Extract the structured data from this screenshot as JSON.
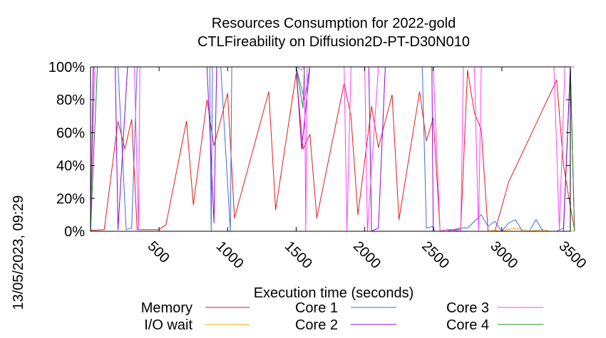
{
  "chart_data": {
    "type": "line",
    "title": "Resources Consumption for 2022-gold",
    "subtitle": "CTLFireability on Diffusion2D-PT-D30N010",
    "xlabel": "Execution time (seconds)",
    "ylabel": "",
    "side_label": "13/05/2023, 09:29",
    "xlim": [
      0,
      3500
    ],
    "ylim": [
      0,
      100
    ],
    "x_ticks": [
      500,
      1000,
      1500,
      2000,
      2500,
      3000,
      3500
    ],
    "y_ticks": [
      0,
      20,
      40,
      60,
      80,
      100
    ],
    "y_tick_labels": [
      "0%",
      "20%",
      "40%",
      "60%",
      "80%",
      "100%"
    ],
    "grid": false,
    "legend_position": "bottom",
    "series": [
      {
        "name": "Memory",
        "color": "#e41a1c",
        "points": [
          [
            0,
            0.5
          ],
          [
            100,
            1
          ],
          [
            200,
            67
          ],
          [
            250,
            50
          ],
          [
            300,
            68
          ],
          [
            340,
            1
          ],
          [
            500,
            1
          ],
          [
            550,
            4
          ],
          [
            700,
            67
          ],
          [
            750,
            16
          ],
          [
            850,
            80
          ],
          [
            900,
            52
          ],
          [
            1000,
            84
          ],
          [
            1050,
            8
          ],
          [
            1300,
            85
          ],
          [
            1350,
            13
          ],
          [
            1500,
            96
          ],
          [
            1550,
            50
          ],
          [
            1600,
            59
          ],
          [
            1650,
            8
          ],
          [
            1850,
            90
          ],
          [
            1900,
            70
          ],
          [
            1950,
            10
          ],
          [
            2050,
            76
          ],
          [
            2100,
            51
          ],
          [
            2200,
            83
          ],
          [
            2250,
            7
          ],
          [
            2400,
            85
          ],
          [
            2450,
            55
          ],
          [
            2500,
            69
          ],
          [
            2550,
            0
          ],
          [
            2600,
            1
          ],
          [
            2700,
            1
          ],
          [
            2750,
            98
          ],
          [
            2800,
            72
          ],
          [
            2850,
            62
          ],
          [
            2900,
            0
          ],
          [
            2950,
            0
          ],
          [
            3050,
            30
          ],
          [
            3400,
            92
          ],
          [
            3450,
            40
          ],
          [
            3500,
            15
          ],
          [
            3530,
            1
          ]
        ]
      },
      {
        "name": "I/O wait",
        "color": "#ffa500",
        "points": [
          [
            0,
            0
          ],
          [
            2900,
            0
          ],
          [
            2950,
            0.5
          ],
          [
            3000,
            0
          ],
          [
            3100,
            2
          ],
          [
            3150,
            1
          ],
          [
            3200,
            0
          ],
          [
            3300,
            1
          ],
          [
            3350,
            0
          ],
          [
            3530,
            0
          ]
        ]
      },
      {
        "name": "Core 1",
        "color": "#4169e1",
        "points": [
          [
            0,
            0
          ],
          [
            20,
            100
          ],
          [
            100,
            100
          ],
          [
            200,
            100
          ],
          [
            260,
            1
          ],
          [
            300,
            2
          ],
          [
            340,
            100
          ],
          [
            800,
            100
          ],
          [
            870,
            100
          ],
          [
            880,
            0
          ],
          [
            890,
            100
          ],
          [
            950,
            100
          ],
          [
            1020,
            0
          ],
          [
            1030,
            100
          ],
          [
            1500,
            100
          ],
          [
            1560,
            80
          ],
          [
            1600,
            100
          ],
          [
            2420,
            100
          ],
          [
            2450,
            2
          ],
          [
            2500,
            3
          ],
          [
            2510,
            0
          ],
          [
            2550,
            0
          ],
          [
            2600,
            0
          ],
          [
            2700,
            2
          ],
          [
            2750,
            2
          ],
          [
            2850,
            10
          ],
          [
            2900,
            3
          ],
          [
            2950,
            6
          ],
          [
            3000,
            0
          ],
          [
            3050,
            5
          ],
          [
            3100,
            7
          ],
          [
            3150,
            0
          ],
          [
            3200,
            0
          ],
          [
            3250,
            7
          ],
          [
            3300,
            0
          ],
          [
            3400,
            0
          ],
          [
            3450,
            2
          ],
          [
            3500,
            100
          ],
          [
            3530,
            100
          ]
        ]
      },
      {
        "name": "Core 2",
        "color": "#9400d3",
        "points": [
          [
            0,
            0
          ],
          [
            20,
            100
          ],
          [
            130,
            100
          ],
          [
            180,
            100
          ],
          [
            200,
            1
          ],
          [
            270,
            100
          ],
          [
            850,
            100
          ],
          [
            900,
            5
          ],
          [
            920,
            100
          ],
          [
            1500,
            100
          ],
          [
            1540,
            50
          ],
          [
            1600,
            100
          ],
          [
            2030,
            100
          ],
          [
            2050,
            0
          ],
          [
            2100,
            2
          ],
          [
            2150,
            100
          ],
          [
            2490,
            100
          ],
          [
            2500,
            0
          ],
          [
            2600,
            0
          ],
          [
            2800,
            0
          ],
          [
            3000,
            0
          ],
          [
            3200,
            0
          ],
          [
            3400,
            0
          ],
          [
            3450,
            0
          ],
          [
            3500,
            100
          ],
          [
            3530,
            0
          ]
        ]
      },
      {
        "name": "Core 3",
        "color": "#ff40ff",
        "points": [
          [
            0,
            0
          ],
          [
            30,
            100
          ],
          [
            320,
            100
          ],
          [
            350,
            1
          ],
          [
            360,
            100
          ],
          [
            1500,
            100
          ],
          [
            1540,
            98
          ],
          [
            1560,
            100
          ],
          [
            1570,
            0
          ],
          [
            1580,
            100
          ],
          [
            1850,
            100
          ],
          [
            1870,
            0
          ],
          [
            1900,
            100
          ],
          [
            2000,
            100
          ],
          [
            2020,
            0
          ],
          [
            2100,
            100
          ],
          [
            2500,
            100
          ],
          [
            2550,
            0
          ],
          [
            2600,
            1
          ],
          [
            2700,
            0
          ],
          [
            2720,
            100
          ],
          [
            2800,
            100
          ],
          [
            2830,
            0
          ],
          [
            2850,
            100
          ],
          [
            3380,
            100
          ],
          [
            3420,
            1
          ],
          [
            3460,
            100
          ],
          [
            3530,
            100
          ]
        ]
      },
      {
        "name": "Core 4",
        "color": "#228b22",
        "points": [
          [
            0,
            0
          ],
          [
            50,
            100
          ],
          [
            1480,
            100
          ],
          [
            1500,
            100
          ],
          [
            1550,
            75
          ],
          [
            1560,
            100
          ],
          [
            3500,
            100
          ],
          [
            3530,
            0
          ]
        ]
      }
    ]
  }
}
